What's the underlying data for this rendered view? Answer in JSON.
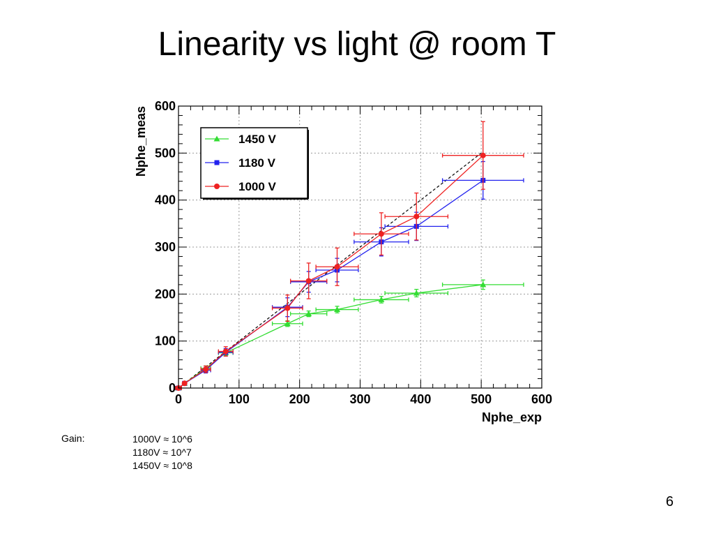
{
  "slide": {
    "title": "Linearity vs light @ room T",
    "page_number": "6"
  },
  "gain": {
    "label": "Gain:",
    "lines": [
      "1000V ≈ 10^6",
      "1180V ≈ 10^7",
      "1450V ≈ 10^8"
    ]
  },
  "chart_data": {
    "type": "scatter",
    "xlabel": "Nphe_exp",
    "ylabel": "Nphe_meas",
    "xlim": [
      0,
      600
    ],
    "ylim": [
      0,
      600
    ],
    "xticks": [
      0,
      100,
      200,
      300,
      400,
      500,
      600
    ],
    "yticks": [
      0,
      100,
      200,
      300,
      400,
      500,
      600
    ],
    "grid": true,
    "legend_position": "top-left",
    "reference_line": {
      "style": "dashed",
      "color": "#000000",
      "from": [
        0,
        0
      ],
      "to": [
        500,
        500
      ]
    },
    "series": [
      {
        "name": "1450 V",
        "color": "#33dd33",
        "marker": "triangle",
        "points": [
          {
            "x": 0,
            "y": 0,
            "xerr": 5,
            "yerr": 3
          },
          {
            "x": 10,
            "y": 10,
            "xerr": 3,
            "yerr": 3
          },
          {
            "x": 45,
            "y": 42,
            "xerr": 8,
            "yerr": 5
          },
          {
            "x": 78,
            "y": 75,
            "xerr": 12,
            "yerr": 6
          },
          {
            "x": 180,
            "y": 137,
            "xerr": 25,
            "yerr": 6
          },
          {
            "x": 215,
            "y": 158,
            "xerr": 30,
            "yerr": 6
          },
          {
            "x": 262,
            "y": 167,
            "xerr": 35,
            "yerr": 7
          },
          {
            "x": 335,
            "y": 188,
            "xerr": 45,
            "yerr": 7
          },
          {
            "x": 393,
            "y": 202,
            "xerr": 52,
            "yerr": 8
          },
          {
            "x": 503,
            "y": 220,
            "xerr": 67,
            "yerr": 10
          }
        ]
      },
      {
        "name": "1180 V",
        "color": "#2222ee",
        "marker": "square",
        "points": [
          {
            "x": 0,
            "y": 0,
            "xerr": 5,
            "yerr": 3
          },
          {
            "x": 10,
            "y": 10,
            "xerr": 3,
            "yerr": 3
          },
          {
            "x": 45,
            "y": 38,
            "xerr": 8,
            "yerr": 6
          },
          {
            "x": 78,
            "y": 76,
            "xerr": 12,
            "yerr": 8
          },
          {
            "x": 180,
            "y": 172,
            "xerr": 25,
            "yerr": 20
          },
          {
            "x": 215,
            "y": 226,
            "xerr": 30,
            "yerr": 22
          },
          {
            "x": 262,
            "y": 251,
            "xerr": 35,
            "yerr": 25
          },
          {
            "x": 335,
            "y": 311,
            "xerr": 45,
            "yerr": 30
          },
          {
            "x": 393,
            "y": 344,
            "xerr": 52,
            "yerr": 30
          },
          {
            "x": 503,
            "y": 442,
            "xerr": 67,
            "yerr": 40
          }
        ]
      },
      {
        "name": "1000 V",
        "color": "#ee2222",
        "marker": "circle",
        "points": [
          {
            "x": 0,
            "y": 0,
            "xerr": 5,
            "yerr": 3
          },
          {
            "x": 10,
            "y": 10,
            "xerr": 3,
            "yerr": 3
          },
          {
            "x": 45,
            "y": 40,
            "xerr": 8,
            "yerr": 7
          },
          {
            "x": 78,
            "y": 78,
            "xerr": 12,
            "yerr": 10
          },
          {
            "x": 180,
            "y": 170,
            "xerr": 25,
            "yerr": 28
          },
          {
            "x": 215,
            "y": 228,
            "xerr": 30,
            "yerr": 38
          },
          {
            "x": 262,
            "y": 258,
            "xerr": 35,
            "yerr": 40
          },
          {
            "x": 335,
            "y": 328,
            "xerr": 45,
            "yerr": 45
          },
          {
            "x": 393,
            "y": 365,
            "xerr": 52,
            "yerr": 50
          },
          {
            "x": 503,
            "y": 495,
            "xerr": 67,
            "yerr": 72
          }
        ]
      }
    ]
  }
}
